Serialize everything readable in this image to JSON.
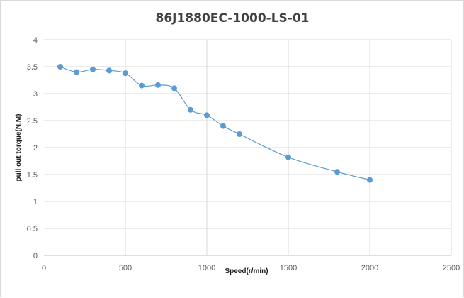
{
  "chart_data": {
    "type": "scatter",
    "title": "86J1880EC-1000-LS-01",
    "xlabel": "Speed(r/min)",
    "ylabel": "pull out torque(N.M)",
    "xlim": [
      0,
      2500
    ],
    "ylim": [
      0,
      4
    ],
    "xticks": [
      "0",
      "500",
      "1000",
      "1500",
      "2000",
      "2500"
    ],
    "yticks": [
      "0",
      "0.5",
      "1",
      "1.5",
      "2",
      "2.5",
      "3",
      "3.5",
      "4"
    ],
    "grid": true,
    "legend": "none",
    "smooth_line": true,
    "color": "#5b9bd5",
    "series": [
      {
        "x": [
          100,
          200,
          300,
          400,
          500,
          600,
          700,
          800,
          900,
          1000,
          1100,
          1200,
          1500,
          1800,
          2000
        ],
        "y": [
          3.5,
          3.4,
          3.45,
          3.43,
          3.38,
          3.15,
          3.16,
          3.1,
          2.7,
          2.6,
          2.4,
          2.25,
          1.82,
          1.55,
          1.4
        ]
      }
    ]
  }
}
